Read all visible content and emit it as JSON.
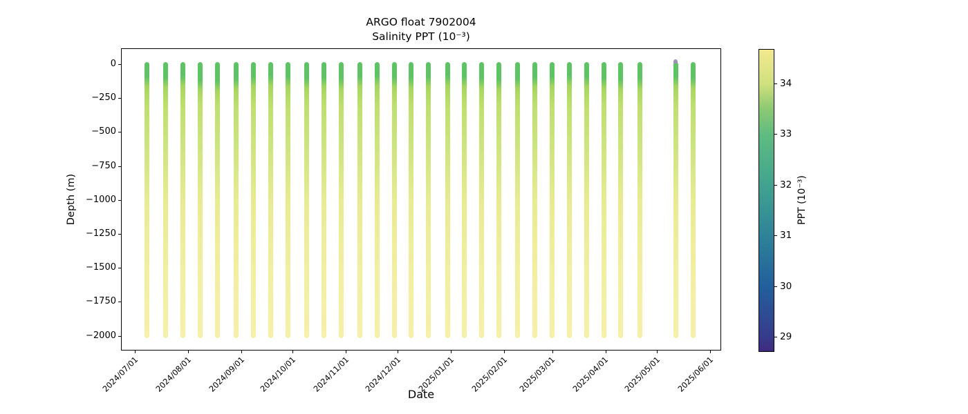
{
  "figure": {
    "title": "ARGO float 7902004",
    "subtitle": "Salinity PPT (10⁻³)",
    "xlabel": "Date",
    "ylabel": "Depth (m)",
    "background": "#ffffff"
  },
  "chart_data": {
    "type": "scatter",
    "title": "ARGO float 7902004",
    "subtitle": "Salinity PPT (10⁻³)",
    "xlabel": "Date",
    "ylabel": "Depth (m)",
    "grid": false,
    "x_tick_labels": [
      "2024/07/01",
      "2024/08/01",
      "2024/09/01",
      "2024/10/01",
      "2024/11/01",
      "2024/12/01",
      "2025/01/01",
      "2025/02/01",
      "2025/03/01",
      "2025/04/01",
      "2025/05/01",
      "2025/06/01"
    ],
    "x_tick_rotation_deg": 45,
    "xlim": [
      "2024/06/23",
      "2025/06/07"
    ],
    "y_tick_values": [
      0,
      -250,
      -500,
      -750,
      -1000,
      -1250,
      -1500,
      -1750,
      -2000
    ],
    "ylim": [
      -2100,
      100
    ],
    "colorbar": {
      "label": "PPT (10⁻³)",
      "colormap": "viridis",
      "vmin": 28.7,
      "vmax": 34.68,
      "tick_values": [
        34,
        33,
        32,
        31,
        30,
        29
      ],
      "gradient_stops": [
        {
          "value": 34.68,
          "color": "#f3e98f"
        },
        {
          "value": 34.0,
          "color": "#cfe07e"
        },
        {
          "value": 33.5,
          "color": "#8cc973"
        },
        {
          "value": 33.0,
          "color": "#5fbc80"
        },
        {
          "value": 32.0,
          "color": "#41a38f"
        },
        {
          "value": 31.0,
          "color": "#2f8398"
        },
        {
          "value": 30.0,
          "color": "#22609d"
        },
        {
          "value": 29.0,
          "color": "#363c8c"
        },
        {
          "value": 28.7,
          "color": "#3f2a7e"
        }
      ]
    },
    "depth_color_scale": [
      {
        "depth_m": 0,
        "ppt": 33.2,
        "color": "#5ec364"
      },
      {
        "depth_m": -150,
        "ppt": 33.7,
        "color": "#a6d65f"
      },
      {
        "depth_m": -300,
        "ppt": 33.85,
        "color": "#bedf6e"
      },
      {
        "depth_m": -600,
        "ppt": 33.95,
        "color": "#cde47f"
      },
      {
        "depth_m": -1000,
        "ppt": 34.15,
        "color": "#e7eb92"
      },
      {
        "depth_m": -1500,
        "ppt": 34.3,
        "color": "#f1efa0"
      },
      {
        "depth_m": -2000,
        "ppt": 34.45,
        "color": "#f6f0a8"
      }
    ],
    "profile_depth_range_m": [
      0,
      -2000
    ],
    "missing_profile_near": "2025/05/02",
    "anomaly_color": "#9a93b8",
    "profiles": [
      {
        "date": "2024/07/08",
        "mixed_layer_m": 120,
        "surface_ppt": 33.2,
        "bottom_ppt": 34.45
      },
      {
        "date": "2024/07/19",
        "mixed_layer_m": 125,
        "surface_ppt": 33.2,
        "bottom_ppt": 34.45
      },
      {
        "date": "2024/07/29",
        "mixed_layer_m": 115,
        "surface_ppt": 33.2,
        "bottom_ppt": 34.45
      },
      {
        "date": "2024/08/08",
        "mixed_layer_m": 145,
        "surface_ppt": 33.2,
        "bottom_ppt": 34.45
      },
      {
        "date": "2024/08/18",
        "mixed_layer_m": 150,
        "surface_ppt": 33.2,
        "bottom_ppt": 34.45
      },
      {
        "date": "2024/08/29",
        "mixed_layer_m": 135,
        "surface_ppt": 33.2,
        "bottom_ppt": 34.45
      },
      {
        "date": "2024/09/08",
        "mixed_layer_m": 120,
        "surface_ppt": 33.2,
        "bottom_ppt": 34.45
      },
      {
        "date": "2024/09/18",
        "mixed_layer_m": 115,
        "surface_ppt": 33.2,
        "bottom_ppt": 34.45
      },
      {
        "date": "2024/09/28",
        "mixed_layer_m": 120,
        "surface_ppt": 33.2,
        "bottom_ppt": 34.45
      },
      {
        "date": "2024/10/09",
        "mixed_layer_m": 130,
        "surface_ppt": 33.2,
        "bottom_ppt": 34.45
      },
      {
        "date": "2024/10/19",
        "mixed_layer_m": 125,
        "surface_ppt": 33.2,
        "bottom_ppt": 34.45
      },
      {
        "date": "2024/10/29",
        "mixed_layer_m": 135,
        "surface_ppt": 33.2,
        "bottom_ppt": 34.45
      },
      {
        "date": "2024/11/09",
        "mixed_layer_m": 120,
        "surface_ppt": 33.2,
        "bottom_ppt": 34.45
      },
      {
        "date": "2024/11/19",
        "mixed_layer_m": 115,
        "surface_ppt": 33.2,
        "bottom_ppt": 34.45
      },
      {
        "date": "2024/11/29",
        "mixed_layer_m": 125,
        "surface_ppt": 33.2,
        "bottom_ppt": 34.45
      },
      {
        "date": "2024/12/09",
        "mixed_layer_m": 130,
        "surface_ppt": 33.2,
        "bottom_ppt": 34.45
      },
      {
        "date": "2024/12/19",
        "mixed_layer_m": 120,
        "surface_ppt": 33.2,
        "bottom_ppt": 34.45
      },
      {
        "date": "2024/12/30",
        "mixed_layer_m": 115,
        "surface_ppt": 33.2,
        "bottom_ppt": 34.45
      },
      {
        "date": "2025/01/09",
        "mixed_layer_m": 120,
        "surface_ppt": 33.2,
        "bottom_ppt": 34.45
      },
      {
        "date": "2025/01/19",
        "mixed_layer_m": 130,
        "surface_ppt": 33.2,
        "bottom_ppt": 34.45
      },
      {
        "date": "2025/01/29",
        "mixed_layer_m": 140,
        "surface_ppt": 33.2,
        "bottom_ppt": 34.45
      },
      {
        "date": "2025/02/09",
        "mixed_layer_m": 135,
        "surface_ppt": 33.2,
        "bottom_ppt": 34.45
      },
      {
        "date": "2025/02/19",
        "mixed_layer_m": 125,
        "surface_ppt": 33.2,
        "bottom_ppt": 34.45
      },
      {
        "date": "2025/03/01",
        "mixed_layer_m": 120,
        "surface_ppt": 33.2,
        "bottom_ppt": 34.45
      },
      {
        "date": "2025/03/11",
        "mixed_layer_m": 115,
        "surface_ppt": 33.2,
        "bottom_ppt": 34.45
      },
      {
        "date": "2025/03/21",
        "mixed_layer_m": 120,
        "surface_ppt": 33.2,
        "bottom_ppt": 34.45
      },
      {
        "date": "2025/03/31",
        "mixed_layer_m": 130,
        "surface_ppt": 33.2,
        "bottom_ppt": 34.45
      },
      {
        "date": "2025/04/10",
        "mixed_layer_m": 140,
        "surface_ppt": 33.2,
        "bottom_ppt": 34.45
      },
      {
        "date": "2025/04/21",
        "mixed_layer_m": 135,
        "surface_ppt": 33.2,
        "bottom_ppt": 34.45
      },
      {
        "date": "2025/05/12",
        "mixed_layer_m": 120,
        "surface_ppt": 30.2,
        "bottom_ppt": 34.45,
        "surface_anomaly": true
      },
      {
        "date": "2025/05/22",
        "mixed_layer_m": 130,
        "surface_ppt": 33.2,
        "bottom_ppt": 34.45
      }
    ]
  }
}
